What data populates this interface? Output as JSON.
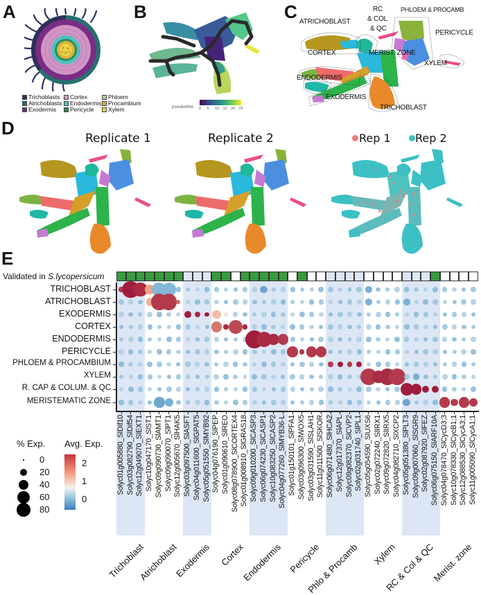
{
  "panels": {
    "A": {
      "letter": "A",
      "legend": [
        {
          "label": "Trichoblasts",
          "color": "#2e2f5a"
        },
        {
          "label": "Atrichoblasts",
          "color": "#27706e"
        },
        {
          "label": "Exodermis",
          "color": "#7b2d85"
        },
        {
          "label": "Cortex",
          "color": "#d195c5"
        },
        {
          "label": "Endodermis",
          "color": "#4dc1c0"
        },
        {
          "label": "Pericycle",
          "color": "#2a8c5a"
        },
        {
          "label": "Phloem",
          "color": "#b9c7a0"
        },
        {
          "label": "Procambium",
          "color": "#d9b43a"
        },
        {
          "label": "Xylem",
          "color": "#e8d34a"
        }
      ]
    },
    "B": {
      "letter": "B",
      "colorbar_label": "pseudotime",
      "ticks": [
        "0",
        "5",
        "10",
        "15",
        "20",
        "25"
      ]
    },
    "C": {
      "letter": "C",
      "labels": {
        "atrichoblast": "ATRICHOBLAST",
        "rc1": "RC",
        "rc2": "& COL",
        "rc3": "& QC",
        "phloem": "PHLOEM & PROCAMB",
        "pericycle": "PERICYCLE",
        "cortex": "CORTEX",
        "merist": "MERIST. ZONE",
        "xylem": "XYLEM",
        "endodermis": "ENDODERMIS",
        "exodermis": "EXODERMIS",
        "trichoblast": "TRICHOBLAST"
      }
    },
    "D": {
      "letter": "D",
      "titles": [
        "Replicate 1",
        "Replicate 2"
      ],
      "legend": [
        {
          "label": "Rep 1",
          "color": "#ee7c78"
        },
        {
          "label": "Rep 2",
          "color": "#3cc0c4"
        }
      ]
    },
    "E": {
      "letter": "E"
    }
  },
  "chart_data": {
    "type": "dotplot",
    "title": "",
    "validation_label_prefix": "Validated in ",
    "validation_label_species": "S.lycopersicum",
    "rows": [
      "TRICHOBLAST",
      "ATRICHOBLAST",
      "EXODERMIS",
      "CORTEX",
      "ENDODERMIS",
      "PERICYCLE",
      "PHLOEM & PROCAMBIUM",
      "XYLEM",
      "R. CAP & COLUM. & QC",
      "MERISTEMATIC ZONE"
    ],
    "groups": [
      {
        "label": "Trichoblast",
        "n": 3,
        "shaded": true
      },
      {
        "label": "Atrichoblast",
        "n": 4,
        "shaded": false
      },
      {
        "label": "Exodermis",
        "n": 3,
        "shaded": true
      },
      {
        "label": "Cortex",
        "n": 4,
        "shaded": false
      },
      {
        "label": "Endodermis",
        "n": 4,
        "shaded": true
      },
      {
        "label": "Pericycle",
        "n": 4,
        "shaded": false
      },
      {
        "label": "Phlo & Procamb",
        "n": 4,
        "shaded": true
      },
      {
        "label": "Xylem",
        "n": 4,
        "shaded": false
      },
      {
        "label": "RC & Col & QC",
        "n": 4,
        "shaded": true
      },
      {
        "label": "Merist. zone",
        "n": 4,
        "shaded": false
      }
    ],
    "genes": [
      "Solyc01g005880_SlDif10",
      "Solyc03g082790_SlDif54",
      "Solyc12g049070_SlEXT1",
      "Solyc10g047170_SlST1",
      "Solyc09g090730_SlAMT1",
      "Solyc09g090070_SlPT1",
      "Solyc12g005670_SlHAK5",
      "Solyc03g097500_SlASFT",
      "Solyc04g011600_SlGPAT5",
      "Solyc05g051550_SlMYB92",
      "Solyc04g076190_SlPEP",
      "Solyc01g090610_SlREO",
      "Solyc08g078900_SlCORTEX4",
      "Solyc01g008910_SlGRAS18",
      "Solyc09g010200_SlCASP3",
      "Solyc06g074230_SlCASP1",
      "Solyc10g083250_SlCASP2",
      "Solyc04g077260_SlMYB36-L",
      "Solyc01g150101_SlPFA1",
      "Solyc03g096300_SlWOX5",
      "Solyc03g031590_SlSLAH1",
      "Solyc11g011500_SlSKOR",
      "Solyc06g071480_SlHCA2",
      "Solyc12g017370_SlAPL",
      "Solyc09g082370_SlCVP2",
      "Solyc02g031740_SlPL1",
      "Solyc05g054590_SlUXS6",
      "Solyc02g072240_SlIRX1",
      "Solyc09g072820_SlIRX5",
      "Solyc04g082710_SlXCP2",
      "Solyc05g051380_SlPLT3",
      "Solyc09g007060_SlSGR9",
      "Solyc02g087920_SlFEZ",
      "Solyc06g075150_SlARF10A",
      "Solyc04g078470_SlCycD3;3",
      "Solyc10g078330_SlCycB1;1",
      "Solyc12g088530_SlCycA3;1",
      "Solyc11g005090_SlCycA1;1"
    ],
    "validated": [
      1,
      1,
      1,
      1,
      1,
      1,
      1,
      0,
      0,
      0,
      1,
      1,
      0,
      1,
      1,
      1,
      1,
      1,
      0,
      1,
      0,
      0,
      0,
      0,
      0,
      0,
      0,
      0,
      0,
      0,
      0,
      0,
      0,
      1,
      0,
      0,
      0,
      0
    ],
    "highlight_dots": [
      {
        "row": 0,
        "col": 0,
        "pct": 5,
        "avg": 2.3
      },
      {
        "row": 0,
        "col": 1,
        "pct": 85,
        "avg": 2.5
      },
      {
        "row": 0,
        "col": 2,
        "pct": 55,
        "avg": 2.4
      },
      {
        "row": 0,
        "col": 3,
        "pct": 25,
        "avg": 1.6
      },
      {
        "row": 0,
        "col": 4,
        "pct": 60,
        "avg": 0.2
      },
      {
        "row": 0,
        "col": 5,
        "pct": 55,
        "avg": 0.2
      },
      {
        "row": 1,
        "col": 3,
        "pct": 15,
        "avg": 1.5
      },
      {
        "row": 1,
        "col": 4,
        "pct": 75,
        "avg": 2.3
      },
      {
        "row": 1,
        "col": 5,
        "pct": 75,
        "avg": 2.3
      },
      {
        "row": 1,
        "col": 6,
        "pct": 3,
        "avg": 2.0
      },
      {
        "row": 2,
        "col": 7,
        "pct": 12,
        "avg": 2.5
      },
      {
        "row": 2,
        "col": 8,
        "pct": 6,
        "avg": 2.4
      },
      {
        "row": 2,
        "col": 9,
        "pct": 4,
        "avg": 2.5
      },
      {
        "row": 2,
        "col": 10,
        "pct": 20,
        "avg": 1.4
      },
      {
        "row": 2,
        "col": 11,
        "pct": 4,
        "avg": 1.1
      },
      {
        "row": 3,
        "col": 10,
        "pct": 30,
        "avg": 1.9
      },
      {
        "row": 3,
        "col": 11,
        "pct": 8,
        "avg": 2.4
      },
      {
        "row": 3,
        "col": 12,
        "pct": 55,
        "avg": 2.2
      },
      {
        "row": 3,
        "col": 13,
        "pct": 6,
        "avg": 2.4
      },
      {
        "row": 4,
        "col": 14,
        "pct": 95,
        "avg": 2.5
      },
      {
        "row": 4,
        "col": 15,
        "pct": 65,
        "avg": 2.4
      },
      {
        "row": 4,
        "col": 16,
        "pct": 35,
        "avg": 2.4
      },
      {
        "row": 4,
        "col": 17,
        "pct": 30,
        "avg": 2.3
      },
      {
        "row": 5,
        "col": 18,
        "pct": 30,
        "avg": 2.3
      },
      {
        "row": 5,
        "col": 19,
        "pct": 5,
        "avg": 2.3
      },
      {
        "row": 5,
        "col": 20,
        "pct": 30,
        "avg": 2.3
      },
      {
        "row": 5,
        "col": 21,
        "pct": 30,
        "avg": 2.3
      },
      {
        "row": 6,
        "col": 22,
        "pct": 5,
        "avg": 2.3
      },
      {
        "row": 6,
        "col": 23,
        "pct": 7,
        "avg": 2.5
      },
      {
        "row": 6,
        "col": 24,
        "pct": 5,
        "avg": 2.3
      },
      {
        "row": 6,
        "col": 25,
        "pct": 7,
        "avg": 2.5
      },
      {
        "row": 7,
        "col": 26,
        "pct": 85,
        "avg": 2.3
      },
      {
        "row": 7,
        "col": 27,
        "pct": 45,
        "avg": 2.4
      },
      {
        "row": 7,
        "col": 28,
        "pct": 80,
        "avg": 2.4
      },
      {
        "row": 7,
        "col": 29,
        "pct": 80,
        "avg": 2.3
      },
      {
        "row": 8,
        "col": 30,
        "pct": 40,
        "avg": 2.5
      },
      {
        "row": 8,
        "col": 31,
        "pct": 30,
        "avg": 2.5
      },
      {
        "row": 8,
        "col": 32,
        "pct": 12,
        "avg": 2.5
      },
      {
        "row": 8,
        "col": 33,
        "pct": 12,
        "avg": 2.5
      },
      {
        "row": 9,
        "col": 34,
        "pct": 30,
        "avg": 2.3
      },
      {
        "row": 9,
        "col": 35,
        "pct": 12,
        "avg": 2.3
      },
      {
        "row": 9,
        "col": 36,
        "pct": 30,
        "avg": 2.3
      },
      {
        "row": 9,
        "col": 37,
        "pct": 18,
        "avg": 2.3
      },
      {
        "row": 9,
        "col": 4,
        "pct": 30,
        "avg": 0.0
      },
      {
        "row": 9,
        "col": 5,
        "pct": 18,
        "avg": 0.1
      },
      {
        "row": 0,
        "col": 15,
        "pct": 14,
        "avg": 0.0
      },
      {
        "row": 0,
        "col": 26,
        "pct": 10,
        "avg": 0.1
      },
      {
        "row": 1,
        "col": 26,
        "pct": 10,
        "avg": 0.1
      },
      {
        "row": 1,
        "col": 30,
        "pct": 10,
        "avg": 0.1
      },
      {
        "row": 9,
        "col": 30,
        "pct": 14,
        "avg": 0.0
      },
      {
        "row": 7,
        "col": 31,
        "pct": 10,
        "avg": 0.1
      }
    ],
    "size_legend": {
      "title": "% Exp.",
      "values": [
        0,
        20,
        40,
        60,
        80
      ]
    },
    "color_legend": {
      "title": "Avg. Exp.",
      "ticks": [
        "2",
        "1",
        "0"
      ],
      "range": [
        -0.5,
        2.5
      ],
      "low": "#3b7dbd",
      "mid": "#f4f1ee",
      "high": "#c8323a"
    }
  }
}
